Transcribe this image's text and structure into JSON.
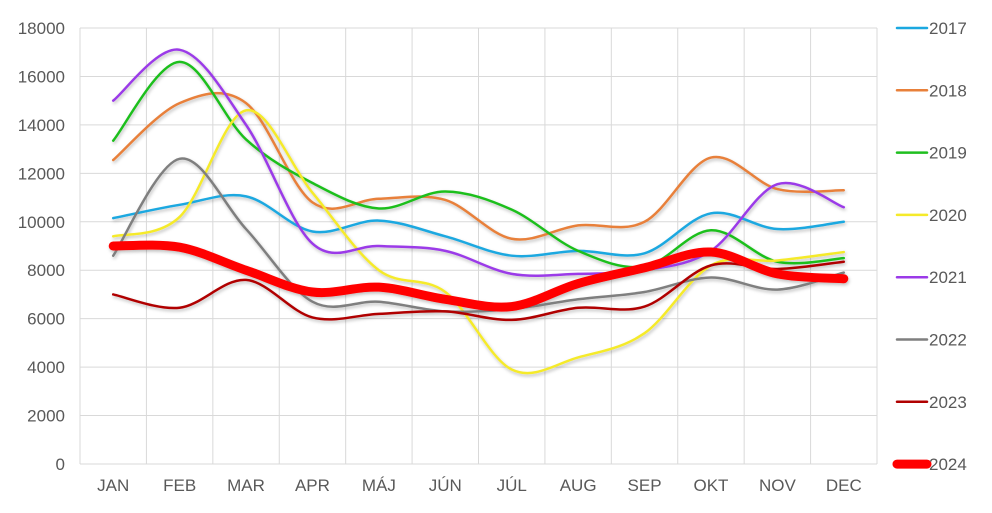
{
  "chart_data": {
    "type": "line",
    "title": "",
    "xlabel": "",
    "ylabel": "",
    "ylim": [
      0,
      18000
    ],
    "yticks": [
      0,
      2000,
      4000,
      6000,
      8000,
      10000,
      12000,
      14000,
      16000,
      18000
    ],
    "categories": [
      "JAN",
      "FEB",
      "MAR",
      "APR",
      "MÁJ",
      "JÚN",
      "JÚL",
      "AUG",
      "SEP",
      "OKT",
      "NOV",
      "DEC"
    ],
    "grid": true,
    "legend_position": "right",
    "series": [
      {
        "name": "2017",
        "color": "#1ba8e0",
        "width": 2.5,
        "values": [
          10150,
          10700,
          11050,
          9600,
          10050,
          9400,
          8600,
          8800,
          8700,
          10350,
          9700,
          10000
        ]
      },
      {
        "name": "2018",
        "color": "#e8803a",
        "width": 2.5,
        "values": [
          12550,
          14900,
          14900,
          10800,
          10950,
          10900,
          9300,
          9850,
          10000,
          12650,
          11350,
          11300
        ]
      },
      {
        "name": "2019",
        "color": "#1fbf1f",
        "width": 2.5,
        "values": [
          13350,
          16600,
          13400,
          11600,
          10550,
          11250,
          10500,
          8800,
          8150,
          9650,
          8350,
          8500
        ]
      },
      {
        "name": "2020",
        "color": "#f5ea2a",
        "width": 2.5,
        "values": [
          9400,
          10200,
          14600,
          11200,
          8000,
          7100,
          3900,
          4400,
          5400,
          8200,
          8400,
          8750
        ]
      },
      {
        "name": "2021",
        "color": "#9b3ae8",
        "width": 2.5,
        "values": [
          15000,
          17100,
          14000,
          9100,
          9000,
          8800,
          7850,
          7850,
          8000,
          8800,
          11550,
          10600
        ]
      },
      {
        "name": "2022",
        "color": "#7f7f7f",
        "width": 2.5,
        "values": [
          8600,
          12600,
          9700,
          6700,
          6700,
          6300,
          6400,
          6800,
          7100,
          7700,
          7200,
          7900
        ]
      },
      {
        "name": "2023",
        "color": "#b00000",
        "width": 2.5,
        "values": [
          7000,
          6450,
          7600,
          6050,
          6200,
          6300,
          5950,
          6450,
          6500,
          8200,
          8050,
          8350
        ]
      },
      {
        "name": "2024",
        "color": "#ff0000",
        "width": 9,
        "values": [
          9000,
          8950,
          8000,
          7100,
          7300,
          6800,
          6500,
          7450,
          8100,
          8750,
          7850,
          7650
        ]
      }
    ]
  }
}
